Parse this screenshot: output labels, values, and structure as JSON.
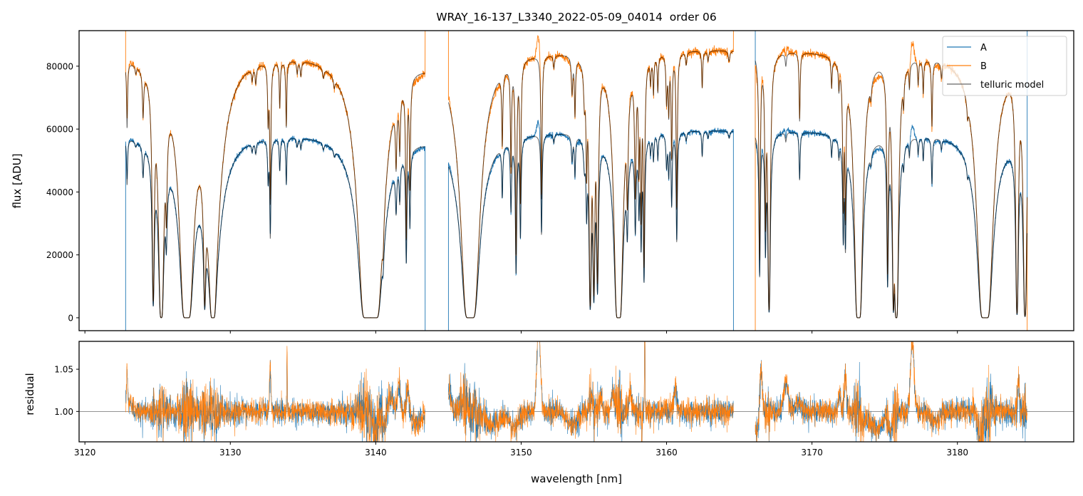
{
  "chart_data": {
    "type": "line",
    "title": "WRAY_16-137_L3340_2022-05-09_04014  order 06",
    "xlabel": "wavelength [nm]",
    "xlim": [
      3119.6,
      3188.0
    ],
    "x_ticks": [
      3120,
      3130,
      3140,
      3150,
      3160,
      3170,
      3180
    ],
    "top_panel": {
      "ylabel": "flux [ADU]",
      "ylim": [
        -4100,
        91300
      ],
      "y_ticks": [
        0,
        20000,
        40000,
        60000,
        80000
      ]
    },
    "bottom_panel": {
      "ylabel": "residual",
      "ylim": [
        0.964,
        1.083
      ],
      "y_ticks": [
        "1.00",
        "1.05"
      ],
      "reference_line": 1.0
    },
    "legend": {
      "placement": "top-right",
      "entries": [
        {
          "label": "A",
          "color": "#1f77b4"
        },
        {
          "label": "B",
          "color": "#ff7f0e"
        },
        {
          "label": "telluric model",
          "color": "#666666"
        }
      ]
    },
    "series_continuum": {
      "B_peak": 86000,
      "A_to_B_ratio": 0.7,
      "blaze_center": 3152,
      "blaze_drop": 2000
    },
    "segments": [
      {
        "range": [
          3122.8,
          3143.4
        ],
        "edges": {
          "A": [
            -5000,
            -5000
          ],
          "B": [
            95000,
            95000
          ]
        }
      },
      {
        "range": [
          3145.0,
          3164.6
        ],
        "edges": {
          "A": [
            -5000,
            -5000
          ],
          "B": [
            95000,
            95000
          ]
        }
      },
      {
        "range": [
          3166.1,
          3184.8
        ],
        "edges": {
          "A": [
            95000,
            95000
          ],
          "B": [
            -5000,
            -5000
          ]
        }
      }
    ],
    "telluric_lines_center_tau_halfwidth": [
      [
        3122.9,
        0.3,
        0.04
      ],
      [
        3123.5,
        0.03,
        0.05
      ],
      [
        3124.0,
        0.2,
        0.05
      ],
      [
        3124.7,
        2.6,
        0.05
      ],
      [
        3125.25,
        8,
        0.07
      ],
      [
        3125.6,
        0.6,
        0.05
      ],
      [
        3127.0,
        40,
        0.08
      ],
      [
        3128.24,
        2.3,
        0.05
      ],
      [
        3128.8,
        20,
        0.06
      ],
      [
        3128.8,
        0.8,
        0.6
      ],
      [
        3131.5,
        0.05,
        0.05
      ],
      [
        3131.75,
        0.07,
        0.05
      ],
      [
        3132.6,
        0.25,
        0.04
      ],
      [
        3132.75,
        0.8,
        0.04
      ],
      [
        3133.4,
        0.2,
        0.04
      ],
      [
        3133.85,
        0.3,
        0.04
      ],
      [
        3134.6,
        0.05,
        0.05
      ],
      [
        3134.85,
        0.06,
        0.05
      ],
      [
        3136.4,
        0.04,
        0.06
      ],
      [
        3137.15,
        0.04,
        0.06
      ],
      [
        3139.4,
        40,
        0.09
      ],
      [
        3139.9,
        40,
        0.09
      ],
      [
        3140.5,
        0.35,
        0.05
      ],
      [
        3141.4,
        0.35,
        0.05
      ],
      [
        3141.65,
        0.3,
        0.05
      ],
      [
        3142.1,
        1.1,
        0.04
      ],
      [
        3142.35,
        0.6,
        0.04
      ],
      [
        3146.5,
        45,
        0.1
      ],
      [
        3148.7,
        0.35,
        0.04
      ],
      [
        3149.3,
        0.5,
        0.04
      ],
      [
        3149.65,
        1.4,
        0.04
      ],
      [
        3149.95,
        0.8,
        0.04
      ],
      [
        3151.4,
        0.8,
        0.04
      ],
      [
        3152.25,
        0.05,
        0.05
      ],
      [
        3153.5,
        0.15,
        0.05
      ],
      [
        3153.7,
        0.25,
        0.04
      ],
      [
        3154.35,
        0.15,
        0.06
      ],
      [
        3154.5,
        0.5,
        0.04
      ],
      [
        3154.75,
        3,
        0.05
      ],
      [
        3155.0,
        2.3,
        0.05
      ],
      [
        3155.25,
        1.9,
        0.05
      ],
      [
        3156.7,
        30,
        0.06
      ],
      [
        3157.3,
        0.6,
        0.05
      ],
      [
        3157.85,
        0.7,
        0.05
      ],
      [
        3158.1,
        0.5,
        0.04
      ],
      [
        3158.25,
        0.9,
        0.04
      ],
      [
        3158.45,
        1.6,
        0.04
      ],
      [
        3158.9,
        0.1,
        0.04
      ],
      [
        3159.1,
        0.15,
        0.04
      ],
      [
        3159.4,
        0.15,
        0.04
      ],
      [
        3160.0,
        0.2,
        0.05
      ],
      [
        3160.15,
        0.25,
        0.04
      ],
      [
        3160.35,
        0.5,
        0.04
      ],
      [
        3160.7,
        0.9,
        0.04
      ],
      [
        3161.35,
        0.05,
        0.05
      ],
      [
        3162.45,
        0.15,
        0.04
      ],
      [
        3162.85,
        0.04,
        0.05
      ],
      [
        3164.3,
        0.04,
        0.06
      ],
      [
        3166.4,
        1.5,
        0.04
      ],
      [
        3166.8,
        1.0,
        0.04
      ],
      [
        3167.05,
        3.5,
        0.05
      ],
      [
        3168.2,
        0.05,
        0.05
      ],
      [
        3169.15,
        0.3,
        0.04
      ],
      [
        3171.35,
        0.12,
        0.04
      ],
      [
        3171.85,
        0.1,
        0.04
      ],
      [
        3172.15,
        0.8,
        0.04
      ],
      [
        3172.3,
        0.9,
        0.04
      ],
      [
        3173.2,
        25,
        0.06
      ],
      [
        3174.05,
        0.07,
        0.05
      ],
      [
        3175.2,
        1.7,
        0.04
      ],
      [
        3175.6,
        3,
        0.04
      ],
      [
        3175.8,
        10,
        0.05
      ],
      [
        3176.3,
        0.12,
        0.04
      ],
      [
        3176.7,
        0.1,
        0.04
      ],
      [
        3177.3,
        0.1,
        0.04
      ],
      [
        3177.65,
        0.14,
        0.04
      ],
      [
        3178.25,
        0.3,
        0.04
      ],
      [
        3178.9,
        0.06,
        0.05
      ],
      [
        3180.7,
        0.07,
        0.05
      ],
      [
        3181.9,
        50,
        0.08
      ],
      [
        3184.1,
        4,
        0.05
      ],
      [
        3184.65,
        5,
        0.06
      ]
    ],
    "residual_features_center_amp_width": [
      [
        3122.9,
        0.04,
        0.04
      ],
      [
        3123.1,
        0.01,
        0.2
      ],
      [
        3132.75,
        0.05,
        0.05
      ],
      [
        3133.9,
        0.07,
        0.02
      ],
      [
        3139.9,
        -0.025,
        0.15
      ],
      [
        3140.6,
        -0.02,
        0.1
      ],
      [
        3141.0,
        0.02,
        0.15
      ],
      [
        3141.6,
        0.03,
        0.1
      ],
      [
        3142.2,
        0.025,
        0.1
      ],
      [
        3142.8,
        -0.015,
        0.3
      ],
      [
        3145.1,
        0.025,
        0.1
      ],
      [
        3146.0,
        0.015,
        0.2
      ],
      [
        3148.0,
        -0.015,
        0.5
      ],
      [
        3149.5,
        -0.02,
        0.3
      ],
      [
        3151.2,
        0.1,
        0.12
      ],
      [
        3153.5,
        -0.015,
        0.4
      ],
      [
        3154.8,
        0.02,
        0.1
      ],
      [
        3155.5,
        0.015,
        0.1
      ],
      [
        3156.3,
        0.02,
        0.1
      ],
      [
        3157.5,
        0.025,
        0.08
      ],
      [
        3158.5,
        0.1,
        0.02
      ],
      [
        3158.3,
        -0.06,
        0.02
      ],
      [
        3160.6,
        0.025,
        0.1
      ],
      [
        3166.5,
        0.05,
        0.08
      ],
      [
        3166.2,
        -0.025,
        0.1
      ],
      [
        3168.2,
        0.035,
        0.15
      ],
      [
        3169.1,
        0.01,
        0.2
      ],
      [
        3171.9,
        0.025,
        0.06
      ],
      [
        3172.3,
        0.045,
        0.06
      ],
      [
        3173.5,
        -0.01,
        0.3
      ],
      [
        3174.5,
        -0.02,
        0.4
      ],
      [
        3175.4,
        -0.025,
        0.1
      ],
      [
        3176.9,
        0.08,
        0.12
      ],
      [
        3178.5,
        -0.01,
        0.3
      ],
      [
        3181.6,
        -0.025,
        0.2
      ],
      [
        3184.2,
        0.035,
        0.06
      ]
    ],
    "residual_noise_sigma": 0.007
  }
}
